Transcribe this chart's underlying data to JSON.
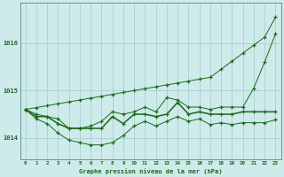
{
  "hours": [
    0,
    1,
    2,
    3,
    4,
    5,
    6,
    7,
    8,
    9,
    10,
    11,
    12,
    13,
    14,
    15,
    16,
    17,
    18,
    19,
    20,
    21,
    22,
    23
  ],
  "line_trend": [
    1014.6,
    1014.64,
    1014.68,
    1014.72,
    1014.76,
    1014.8,
    1014.84,
    1014.88,
    1014.92,
    1014.96,
    1015.0,
    1015.04,
    1015.08,
    1015.12,
    1015.16,
    1015.2,
    1015.24,
    1015.28,
    1015.45,
    1015.62,
    1015.79,
    1015.96,
    1016.13,
    1016.55
  ],
  "line_max": [
    1014.6,
    1014.5,
    1014.45,
    1014.4,
    1014.2,
    1014.2,
    1014.25,
    1014.35,
    1014.55,
    1014.5,
    1014.55,
    1014.65,
    1014.55,
    1014.85,
    1014.8,
    1014.65,
    1014.65,
    1014.6,
    1014.65,
    1014.65,
    1014.65,
    1015.05,
    1015.6,
    1016.2
  ],
  "line_main": [
    1014.6,
    1014.45,
    1014.45,
    1014.3,
    1014.2,
    1014.2,
    1014.2,
    1014.2,
    1014.45,
    1014.3,
    1014.5,
    1014.5,
    1014.45,
    1014.5,
    1014.75,
    1014.5,
    1014.55,
    1014.5,
    1014.5,
    1014.5,
    1014.55,
    1014.55,
    1014.55,
    1014.55
  ],
  "line_min": [
    1014.6,
    1014.4,
    1014.3,
    1014.1,
    1013.95,
    1013.9,
    1013.85,
    1013.85,
    1013.9,
    1014.05,
    1014.25,
    1014.35,
    1014.25,
    1014.35,
    1014.45,
    1014.35,
    1014.4,
    1014.28,
    1014.32,
    1014.28,
    1014.32,
    1014.32,
    1014.32,
    1014.38
  ],
  "background_color": "#ceeaea",
  "grid_color": "#a0cccc",
  "line_color": "#1a6b1a",
  "ylabel_ticks": [
    1014,
    1015,
    1016
  ],
  "ylim": [
    1013.55,
    1016.85
  ],
  "xlim": [
    -0.5,
    23.5
  ],
  "xlabel": "Graphe pression niveau de la mer (hPa)"
}
